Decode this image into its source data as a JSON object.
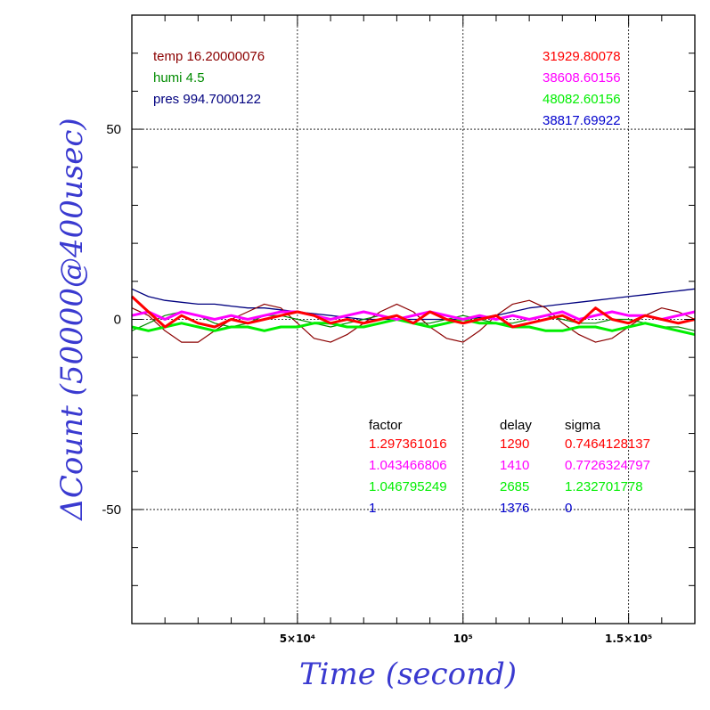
{
  "chart_data": {
    "type": "line",
    "xlabel": "Time (second)",
    "ylabel": "ΔCount (50000@400usec)",
    "xlim": [
      0,
      170000
    ],
    "ylim": [
      -80,
      80
    ],
    "x_ticks": [
      {
        "value": 50000,
        "label": "5×10⁴"
      },
      {
        "value": 100000,
        "label": "10⁵"
      },
      {
        "value": 150000,
        "label": "1.5×10⁵"
      }
    ],
    "y_ticks": [
      {
        "value": 50,
        "label": "50"
      },
      {
        "value": 0,
        "label": "0"
      },
      {
        "value": -50,
        "label": "-50"
      }
    ],
    "grid": true,
    "env": [
      {
        "label": "temp 16.20000076",
        "color": "#8b0000"
      },
      {
        "label": "humi 4.5",
        "color": "#008b00"
      },
      {
        "label": "pres 994.7000122",
        "color": "#00007f"
      }
    ],
    "channels": [
      {
        "label": "31929.80078",
        "color": "#ff0000"
      },
      {
        "label": "38608.60156",
        "color": "#ff00ff"
      },
      {
        "label": "48082.60156",
        "color": "#00ee00"
      },
      {
        "label": "38817.69922",
        "color": "#0000cd"
      }
    ],
    "fit_table": {
      "headers": [
        "factor",
        "delay",
        "sigma"
      ],
      "rows": [
        {
          "color": "#ff0000",
          "factor": "1.297361016",
          "delay": "1290",
          "sigma": "0.7464128137"
        },
        {
          "color": "#ff00ff",
          "factor": "1.043466806",
          "delay": "1410",
          "sigma": "0.7726324797"
        },
        {
          "color": "#00ee00",
          "factor": "1.046795249",
          "delay": "2685",
          "sigma": "1.232701778"
        },
        {
          "color": "#0000cd",
          "factor": "1",
          "delay": "1376",
          "sigma": "0"
        }
      ]
    },
    "series": [
      {
        "color": "#00007f",
        "width": 1.3,
        "x": [
          0,
          5000,
          10000,
          15000,
          20000,
          25000,
          30000,
          35000,
          40000,
          45000,
          50000,
          55000,
          60000,
          65000,
          70000,
          75000,
          80000,
          85000,
          90000,
          95000,
          100000,
          105000,
          110000,
          115000,
          120000,
          125000,
          130000,
          135000,
          140000,
          145000,
          150000,
          155000,
          160000,
          165000,
          170000
        ],
        "y": [
          8,
          6,
          5,
          4.5,
          4,
          4,
          3.5,
          3,
          3,
          2.5,
          2,
          1.5,
          1,
          0.5,
          0,
          0,
          0,
          0,
          0,
          0,
          0,
          0.5,
          1,
          2,
          3,
          3.5,
          4,
          4.5,
          5,
          5.5,
          6,
          6.5,
          7,
          7.5,
          8
        ]
      },
      {
        "color": "#8b0000",
        "width": 1.2,
        "x": [
          0,
          5000,
          10000,
          15000,
          20000,
          25000,
          30000,
          35000,
          40000,
          45000,
          50000,
          55000,
          60000,
          65000,
          70000,
          75000,
          80000,
          85000,
          90000,
          95000,
          100000,
          105000,
          110000,
          115000,
          120000,
          125000,
          130000,
          135000,
          140000,
          145000,
          150000,
          155000,
          160000,
          165000,
          170000
        ],
        "y": [
          3,
          1,
          -3,
          -6,
          -6,
          -3,
          0,
          2,
          4,
          3,
          -1,
          -5,
          -6,
          -4,
          -1,
          2,
          4,
          2,
          -2,
          -5,
          -6,
          -3,
          1,
          4,
          5,
          3,
          -1,
          -4,
          -6,
          -5,
          -2,
          1,
          3,
          2,
          0
        ]
      },
      {
        "color": "#008b00",
        "width": 1.2,
        "x": [
          0,
          5000,
          10000,
          15000,
          20000,
          25000,
          30000,
          35000,
          40000,
          45000,
          50000,
          55000,
          60000,
          65000,
          70000,
          75000,
          80000,
          85000,
          90000,
          95000,
          100000,
          105000,
          110000,
          115000,
          120000,
          125000,
          130000,
          135000,
          140000,
          145000,
          150000,
          155000,
          160000,
          165000,
          170000
        ],
        "y": [
          -3,
          -1,
          1,
          2,
          1,
          -1,
          -2,
          -1,
          1,
          1,
          0,
          -1,
          -2,
          -1,
          0,
          1,
          0,
          -1,
          -1,
          0,
          1,
          0,
          -1,
          -1,
          0,
          1,
          0,
          -1,
          -1,
          0,
          0,
          -1,
          -2,
          -2,
          -3
        ]
      },
      {
        "color": "#00ee00",
        "width": 3,
        "x": [
          0,
          5000,
          10000,
          15000,
          20000,
          25000,
          30000,
          35000,
          40000,
          45000,
          50000,
          55000,
          60000,
          65000,
          70000,
          75000,
          80000,
          85000,
          90000,
          95000,
          100000,
          105000,
          110000,
          115000,
          120000,
          125000,
          130000,
          135000,
          140000,
          145000,
          150000,
          155000,
          160000,
          165000,
          170000
        ],
        "y": [
          -2,
          -3,
          -2,
          -1,
          -2,
          -3,
          -2,
          -2,
          -3,
          -2,
          -2,
          -1,
          -1,
          -2,
          -2,
          -1,
          0,
          -1,
          -2,
          -1,
          0,
          -1,
          -1,
          -2,
          -2,
          -3,
          -3,
          -2,
          -2,
          -3,
          -2,
          -1,
          -2,
          -3,
          -4
        ]
      },
      {
        "color": "#ff00ff",
        "width": 3,
        "x": [
          0,
          5000,
          10000,
          15000,
          20000,
          25000,
          30000,
          35000,
          40000,
          45000,
          50000,
          55000,
          60000,
          65000,
          70000,
          75000,
          80000,
          85000,
          90000,
          95000,
          100000,
          105000,
          110000,
          115000,
          120000,
          125000,
          130000,
          135000,
          140000,
          145000,
          150000,
          155000,
          160000,
          165000,
          170000
        ],
        "y": [
          1,
          2,
          0,
          2,
          1,
          0,
          1,
          0,
          1,
          2,
          2,
          1,
          0,
          1,
          2,
          1,
          0,
          1,
          2,
          1,
          0,
          1,
          0,
          1,
          0,
          1,
          2,
          0,
          1,
          2,
          1,
          1,
          0,
          1,
          2
        ]
      },
      {
        "color": "#ff0000",
        "width": 3,
        "x": [
          0,
          5000,
          10000,
          15000,
          20000,
          25000,
          30000,
          35000,
          40000,
          45000,
          50000,
          55000,
          60000,
          65000,
          70000,
          75000,
          80000,
          85000,
          90000,
          95000,
          100000,
          105000,
          110000,
          115000,
          120000,
          125000,
          130000,
          135000,
          140000,
          145000,
          150000,
          155000,
          160000,
          165000,
          170000
        ],
        "y": [
          6,
          2,
          -2,
          1,
          -1,
          -2,
          0,
          -1,
          0,
          1,
          2,
          1,
          -1,
          0,
          -1,
          0,
          1,
          -1,
          2,
          0,
          -1,
          0,
          1,
          -2,
          -1,
          0,
          1,
          -1,
          3,
          0,
          -1,
          1,
          0,
          -1,
          0
        ]
      }
    ]
  }
}
